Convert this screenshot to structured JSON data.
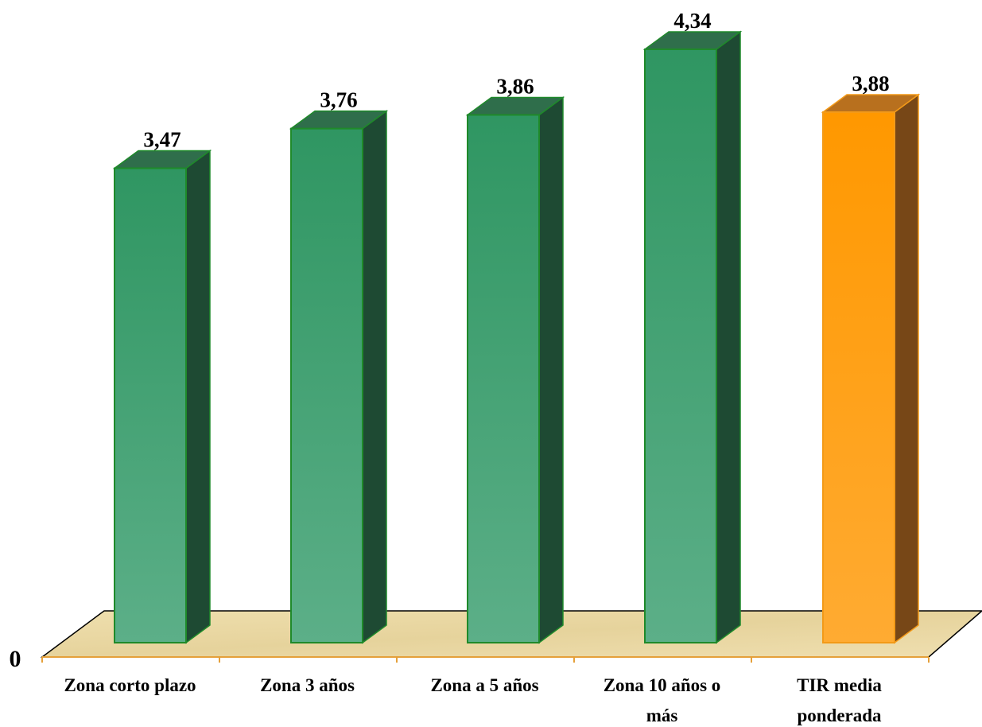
{
  "chart_data": {
    "type": "bar",
    "style": "3d",
    "categories": [
      "Zona corto plazo",
      "Zona 3 años",
      "Zona a 5 años",
      "Zona 10 años o más",
      "TIR media ponderada"
    ],
    "category_lines": [
      [
        "Zona corto plazo"
      ],
      [
        "Zona 3 años"
      ],
      [
        "Zona a 5 años"
      ],
      [
        "Zona 10 años o",
        "más"
      ],
      [
        "TIR media",
        "ponderada"
      ]
    ],
    "values": [
      3.47,
      3.76,
      3.86,
      4.34,
      3.88
    ],
    "value_labels": [
      "3,47",
      "3,76",
      "3,86",
      "4,34",
      "3,88"
    ],
    "highlight_index": 4,
    "colors": {
      "bar": "#3a9c68",
      "bar_highlight": "#ffa01e",
      "floor": "#ead9a6",
      "axis_line": "#e5a03a"
    },
    "y_axis": {
      "tick_labels": [
        "0"
      ],
      "min": 0
    },
    "grid": false,
    "legend": false,
    "title": "",
    "xlabel": "",
    "ylabel": ""
  }
}
